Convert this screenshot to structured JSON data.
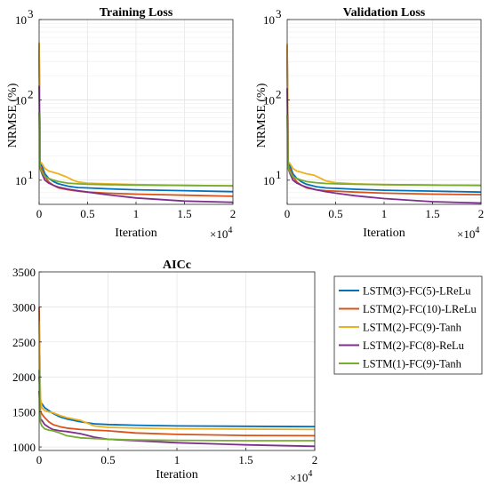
{
  "colors": {
    "LSTM(3)-FC(5)-LReLu": "#0072BD",
    "LSTM(2)-FC(10)-LReLu": "#D95319",
    "LSTM(2)-FC(9)-Tanh": "#EDB120",
    "LSTM(2)-FC(8)-ReLu": "#7E2F8E",
    "LSTM(1)-FC(9)-Tanh": "#77AC30"
  },
  "legend": {
    "placement": "right-of-bottom-plot",
    "entries": [
      "LSTM(3)-FC(5)-LReLu",
      "LSTM(2)-FC(10)-LReLu",
      "LSTM(2)-FC(9)-Tanh",
      "LSTM(2)-FC(8)-ReLu",
      "LSTM(1)-FC(9)-Tanh"
    ]
  },
  "chart_data": [
    {
      "type": "line",
      "title": "Training Loss",
      "xlabel": "Iteration",
      "ylabel": "NRMSE (%)",
      "yscale": "log",
      "xlim": [
        0,
        20000
      ],
      "ylim": [
        5,
        1000
      ],
      "x_ticks": [
        0,
        5000,
        10000,
        15000,
        20000
      ],
      "x_tick_labels": [
        "0",
        "0.5",
        "1",
        "1.5",
        "2"
      ],
      "x_exponent_label": "×10",
      "x_exponent": "4",
      "y_ticks": [
        10,
        100,
        1000
      ],
      "y_tick_labels": [
        "10",
        "10",
        "10"
      ],
      "y_tick_exponents": [
        "1",
        "2",
        "3"
      ],
      "grid": true,
      "series": [
        {
          "name": "LSTM(3)-FC(5)-LReLu",
          "x": [
            0,
            100,
            300,
            600,
            1000,
            1500,
            2000,
            3000,
            4000,
            5000,
            7000,
            10000,
            15000,
            20000
          ],
          "y": [
            480,
            16,
            15,
            12,
            10.5,
            9.6,
            9.0,
            8.4,
            8.1,
            8.0,
            7.8,
            7.6,
            7.4,
            7.2
          ]
        },
        {
          "name": "LSTM(2)-FC(10)-LReLu",
          "x": [
            0,
            100,
            300,
            600,
            1000,
            1500,
            2000,
            3000,
            4000,
            5000,
            7000,
            10000,
            15000,
            20000
          ],
          "y": [
            500,
            15,
            13.5,
            11,
            9.5,
            8.6,
            8.0,
            7.6,
            7.3,
            7.1,
            6.9,
            6.7,
            6.5,
            6.3
          ]
        },
        {
          "name": "LSTM(2)-FC(9)-Tanh",
          "x": [
            0,
            100,
            300,
            600,
            1000,
            1500,
            2000,
            2800,
            3500,
            4000,
            5000,
            7000,
            10000,
            15000,
            20000
          ],
          "y": [
            520,
            17,
            16,
            14,
            13,
            12.5,
            12,
            11,
            10,
            9.5,
            9.2,
            9.0,
            8.8,
            8.6,
            8.5
          ]
        },
        {
          "name": "LSTM(2)-FC(8)-ReLu",
          "x": [
            0,
            100,
            300,
            600,
            1000,
            1500,
            2000,
            3000,
            4000,
            5000,
            7000,
            10000,
            15000,
            20000
          ],
          "y": [
            150,
            14,
            12,
            10,
            9.2,
            8.6,
            8.2,
            7.7,
            7.4,
            7.1,
            6.6,
            6.0,
            5.5,
            5.3
          ]
        },
        {
          "name": "LSTM(1)-FC(9)-Tanh",
          "x": [
            0,
            100,
            300,
            600,
            1000,
            1500,
            2000,
            3000,
            4000,
            5000,
            7000,
            10000,
            15000,
            20000
          ],
          "y": [
            70,
            14,
            12.5,
            11,
            10.5,
            10,
            9.6,
            9.2,
            9.0,
            8.9,
            8.8,
            8.7,
            8.6,
            8.5
          ]
        }
      ]
    },
    {
      "type": "line",
      "title": "Validation Loss",
      "xlabel": "Iteration",
      "ylabel": "NRMSE (%)",
      "yscale": "log",
      "xlim": [
        0,
        20000
      ],
      "ylim": [
        5,
        1000
      ],
      "x_ticks": [
        0,
        5000,
        10000,
        15000,
        20000
      ],
      "x_tick_labels": [
        "0",
        "0.5",
        "1",
        "1.5",
        "2"
      ],
      "x_exponent_label": "×10",
      "x_exponent": "4",
      "y_ticks": [
        10,
        100,
        1000
      ],
      "y_tick_labels": [
        "10",
        "10",
        "10"
      ],
      "y_tick_exponents": [
        "1",
        "2",
        "3"
      ],
      "grid": true,
      "series": [
        {
          "name": "LSTM(3)-FC(5)-LReLu",
          "x": [
            0,
            100,
            300,
            600,
            1000,
            1500,
            2000,
            3000,
            4000,
            5000,
            7000,
            10000,
            15000,
            20000
          ],
          "y": [
            460,
            16,
            15,
            12,
            10.5,
            9.5,
            8.9,
            8.3,
            8.0,
            7.9,
            7.7,
            7.5,
            7.3,
            7.1
          ]
        },
        {
          "name": "LSTM(2)-FC(10)-LReLu",
          "x": [
            0,
            100,
            300,
            600,
            1000,
            1500,
            2000,
            3000,
            4000,
            5000,
            7000,
            10000,
            15000,
            20000
          ],
          "y": [
            480,
            15,
            13.5,
            11,
            9.5,
            8.6,
            8.0,
            7.6,
            7.4,
            7.3,
            7.1,
            6.9,
            6.7,
            6.6
          ]
        },
        {
          "name": "LSTM(2)-FC(9)-Tanh",
          "x": [
            0,
            100,
            300,
            600,
            1000,
            1500,
            2000,
            2800,
            3500,
            4000,
            5000,
            7000,
            10000,
            15000,
            20000
          ],
          "y": [
            500,
            17,
            16,
            14,
            13,
            12.5,
            12,
            11.5,
            10.5,
            9.8,
            9.3,
            9.0,
            8.8,
            8.7,
            8.6
          ]
        },
        {
          "name": "LSTM(2)-FC(8)-ReLu",
          "x": [
            0,
            100,
            300,
            600,
            1000,
            1500,
            2000,
            3000,
            4000,
            5000,
            7000,
            10000,
            15000,
            20000
          ],
          "y": [
            140,
            14,
            12,
            10,
            9.2,
            8.6,
            8.2,
            7.6,
            7.2,
            6.9,
            6.4,
            5.9,
            5.4,
            5.2
          ]
        },
        {
          "name": "LSTM(1)-FC(9)-Tanh",
          "x": [
            0,
            100,
            300,
            600,
            1000,
            1500,
            2000,
            3000,
            4000,
            5000,
            7000,
            10000,
            15000,
            20000
          ],
          "y": [
            65,
            14,
            12.5,
            11,
            10.5,
            10,
            9.6,
            9.3,
            9.1,
            9.0,
            8.9,
            8.8,
            8.7,
            8.6
          ]
        }
      ]
    },
    {
      "type": "line",
      "title": "AICc",
      "xlabel": "Iteration",
      "ylabel": "",
      "yscale": "linear",
      "xlim": [
        0,
        20000
      ],
      "ylim": [
        950,
        3500
      ],
      "x_ticks": [
        0,
        5000,
        10000,
        15000,
        20000
      ],
      "x_tick_labels": [
        "0",
        "0.5",
        "1",
        "1.5",
        "2"
      ],
      "x_exponent_label": "×10",
      "x_exponent": "4",
      "y_ticks": [
        1000,
        1500,
        2000,
        2500,
        3000,
        3500
      ],
      "y_tick_labels": [
        "1000",
        "1500",
        "2000",
        "2500",
        "3000",
        "3500"
      ],
      "grid": true,
      "series": [
        {
          "name": "LSTM(3)-FC(5)-LReLu",
          "x": [
            0,
            100,
            200,
            400,
            700,
            1000,
            1500,
            2000,
            3000,
            4000,
            5000,
            7000,
            10000,
            15000,
            20000
          ],
          "y": [
            2000,
            1600,
            1620,
            1560,
            1520,
            1480,
            1430,
            1400,
            1360,
            1330,
            1320,
            1310,
            1300,
            1295,
            1290
          ]
        },
        {
          "name": "LSTM(2)-FC(10)-LReLu",
          "x": [
            0,
            100,
            200,
            400,
            700,
            1000,
            1500,
            2000,
            3000,
            4000,
            5000,
            7000,
            10000,
            15000,
            20000
          ],
          "y": [
            3000,
            1500,
            1470,
            1420,
            1360,
            1320,
            1290,
            1270,
            1250,
            1240,
            1230,
            1200,
            1180,
            1165,
            1160
          ]
        },
        {
          "name": "LSTM(2)-FC(9)-Tanh",
          "x": [
            0,
            100,
            200,
            400,
            700,
            1000,
            1500,
            2000,
            3000,
            3500,
            4000,
            5000,
            7000,
            10000,
            15000,
            20000
          ],
          "y": [
            2800,
            1700,
            1560,
            1520,
            1500,
            1490,
            1450,
            1420,
            1380,
            1340,
            1300,
            1280,
            1270,
            1260,
            1255,
            1250
          ]
        },
        {
          "name": "LSTM(2)-FC(8)-ReLu",
          "x": [
            0,
            100,
            200,
            400,
            700,
            1000,
            1500,
            2000,
            3000,
            4000,
            5000,
            7000,
            10000,
            15000,
            20000
          ],
          "y": [
            1800,
            1400,
            1380,
            1320,
            1280,
            1250,
            1230,
            1220,
            1190,
            1140,
            1110,
            1090,
            1060,
            1030,
            1010
          ]
        },
        {
          "name": "LSTM(1)-FC(9)-Tanh",
          "x": [
            0,
            100,
            200,
            400,
            700,
            1000,
            1500,
            2000,
            3000,
            4000,
            5000,
            7000,
            10000,
            15000,
            20000
          ],
          "y": [
            2100,
            1350,
            1300,
            1260,
            1240,
            1230,
            1200,
            1160,
            1130,
            1120,
            1110,
            1100,
            1095,
            1090,
            1090
          ]
        }
      ]
    }
  ]
}
